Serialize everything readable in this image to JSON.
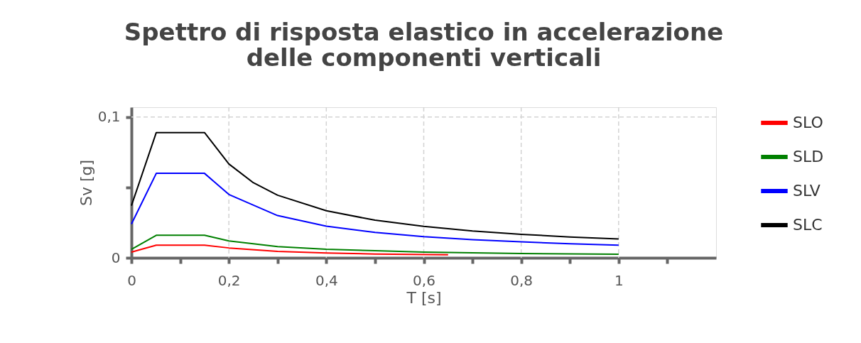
{
  "chart_data": {
    "type": "line",
    "title": [
      "Spettro di risposta elastico in accelerazione",
      "delle componenti verticali"
    ],
    "xlabel": "T [s]",
    "ylabel": "Sv [g]",
    "xlim": [
      0,
      1.2
    ],
    "ylim": [
      0,
      0.107
    ],
    "xticks": [
      0,
      {
        "value": 0.1,
        "label": null
      },
      {
        "value": 0.2,
        "label": "0,2"
      },
      {
        "value": 0.3,
        "label": null
      },
      {
        "value": 0.4,
        "label": "0,4"
      },
      {
        "value": 0.5,
        "label": null
      },
      {
        "value": 0.6,
        "label": "0,6"
      },
      {
        "value": 0.7,
        "label": null
      },
      {
        "value": 0.8,
        "label": "0,8"
      },
      {
        "value": 0.9,
        "label": null
      },
      1,
      {
        "value": 1.1,
        "label": null
      }
    ],
    "yticks": [
      0,
      {
        "value": 0.05,
        "label": null
      },
      {
        "value": 0.1,
        "label": "0,1"
      }
    ],
    "grid": true,
    "legend": "right",
    "line_style": "solid",
    "marker": "none",
    "series": [
      {
        "name": "SLO",
        "color": "#ff0000",
        "x": [
          0,
          0.051,
          0.15,
          0.2,
          0.3,
          0.4,
          0.5,
          0.65
        ],
        "values": [
          0.004,
          0.009,
          0.009,
          0.007,
          0.0045,
          0.0034,
          0.0027,
          0.0021
        ]
      },
      {
        "name": "SLD",
        "color": "#008000",
        "x": [
          0,
          0.051,
          0.15,
          0.2,
          0.3,
          0.4,
          0.5,
          0.6,
          0.8,
          1
        ],
        "values": [
          0.006,
          0.016,
          0.016,
          0.012,
          0.008,
          0.006,
          0.005,
          0.004,
          0.003,
          0.0025
        ]
      },
      {
        "name": "SLV",
        "color": "#0000ff",
        "x": [
          0,
          0.051,
          0.15,
          0.2,
          0.3,
          0.4,
          0.5,
          0.6,
          0.7,
          0.8,
          0.9,
          1
        ],
        "values": [
          0.024,
          0.06,
          0.06,
          0.045,
          0.03,
          0.0225,
          0.018,
          0.015,
          0.0129,
          0.0113,
          0.01,
          0.009
        ]
      },
      {
        "name": "SLC",
        "color": "#000000",
        "x": [
          0,
          0.051,
          0.15,
          0.2,
          0.25,
          0.3,
          0.4,
          0.5,
          0.6,
          0.7,
          0.8,
          0.9,
          1
        ],
        "values": [
          0.037,
          0.089,
          0.089,
          0.0667,
          0.0534,
          0.0445,
          0.0334,
          0.0267,
          0.0223,
          0.0191,
          0.0167,
          0.0148,
          0.0134
        ]
      }
    ]
  }
}
